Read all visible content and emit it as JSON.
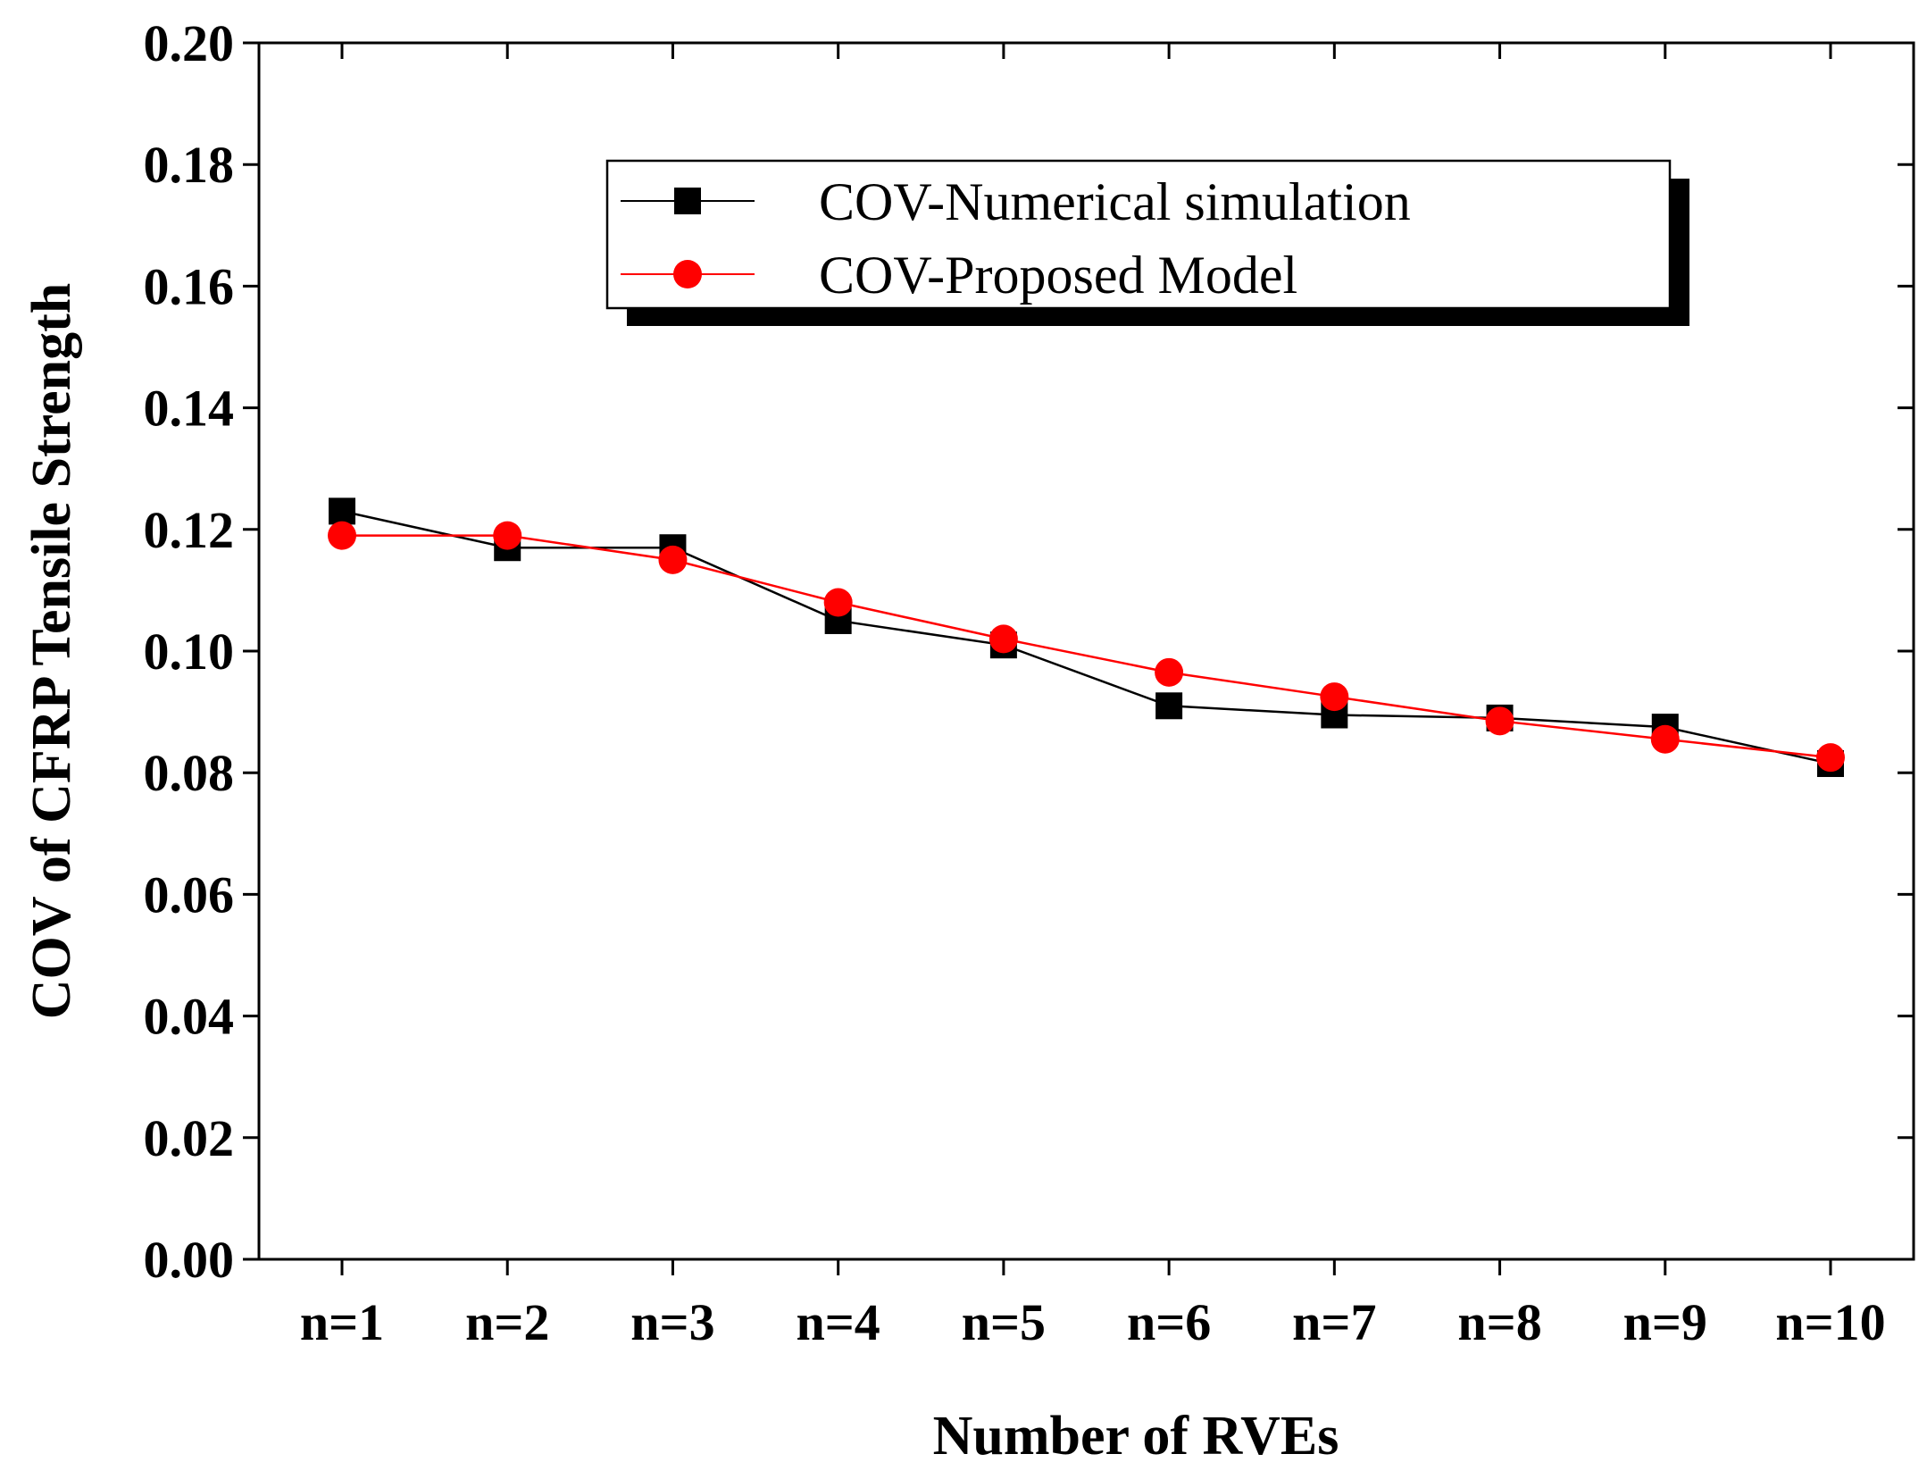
{
  "chart_data": {
    "type": "line",
    "title": "",
    "xlabel": "Number of RVEs",
    "ylabel": "COV of CFRP Tensile Strength",
    "categories": [
      "n=1",
      "n=2",
      "n=3",
      "n=4",
      "n=5",
      "n=6",
      "n=7",
      "n=8",
      "n=9",
      "n=10"
    ],
    "ylim": [
      0.0,
      0.2
    ],
    "yticks": [
      "0.00",
      "0.02",
      "0.04",
      "0.06",
      "0.08",
      "0.10",
      "0.12",
      "0.14",
      "0.16",
      "0.18",
      "0.20"
    ],
    "ytick_values": [
      0.0,
      0.02,
      0.04,
      0.06,
      0.08,
      0.1,
      0.12,
      0.14,
      0.16,
      0.18,
      0.2
    ],
    "grid": false,
    "legend_position": "top-center",
    "series": [
      {
        "name": "COV-Numerical simulation",
        "marker": "square",
        "color": "#000000",
        "values": [
          0.123,
          0.117,
          0.117,
          0.105,
          0.101,
          0.091,
          0.0895,
          0.089,
          0.0875,
          0.0815
        ]
      },
      {
        "name": "COV-Proposed Model",
        "marker": "circle",
        "color": "#ff0000",
        "values": [
          0.119,
          0.119,
          0.115,
          0.108,
          0.102,
          0.0965,
          0.0925,
          0.0885,
          0.0855,
          0.0825
        ]
      }
    ]
  }
}
